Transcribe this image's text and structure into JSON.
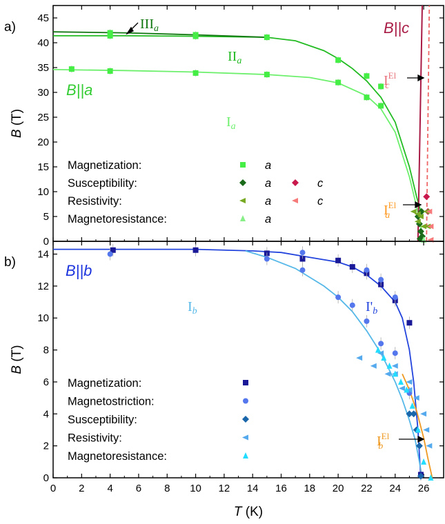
{
  "colors": {
    "a_I": "#6cf06c",
    "a_II": "#22bb22",
    "a_III": "#117711",
    "mag_a": "#44ee44",
    "sus_a": "#1a6a1a",
    "res_a": "#77aa22",
    "mr_a": "#88ee88",
    "c_line": "#a81a44",
    "c_dash": "#ee6666",
    "sus_c": "#c8184c",
    "res_c": "#f77a7a",
    "el_a": "#ff9922",
    "el_c": "#e8707a",
    "b_I": "#55b8e8",
    "b_II": "#2244dd",
    "el_b": "#ee9922",
    "mag_b": "#1a1a99",
    "mstr_b": "#5577ee",
    "sus_b": "#1a66aa",
    "res_b": "#55aaee",
    "mr_b": "#22ddff",
    "b_label": "#1a33dd",
    "a_label": "#33cc33",
    "c_label": "#a81a44"
  },
  "chart_data": [
    {
      "type": "scatter",
      "panel_label": "a)",
      "xlabel": "T (K)",
      "ylabel": "B (T)",
      "xlim": [
        0,
        27.4
      ],
      "ylim": [
        0,
        47.5
      ],
      "xticks": [
        0,
        2,
        4,
        6,
        8,
        10,
        12,
        14,
        16,
        18,
        20,
        22,
        24,
        26
      ],
      "yticks": [
        0,
        5,
        10,
        15,
        20,
        25,
        30,
        35,
        40,
        45
      ],
      "grid": false,
      "field_labels": {
        "a": "B||a",
        "c": "B||c"
      },
      "phase_labels": {
        "I": "I",
        "II": "II",
        "III": "III",
        "sub": "a",
        "Ic_sup": "El",
        "Ic_sub": "c",
        "Ia_sup": "El",
        "Ia_sub": "a"
      },
      "legend_position": "lower-left",
      "legend": [
        {
          "label": "Magnetization:",
          "dirs": [
            "a"
          ]
        },
        {
          "label": "Susceptibility:",
          "dirs": [
            "a",
            "c"
          ]
        },
        {
          "label": "Resistivity:",
          "dirs": [
            "a",
            "c"
          ]
        },
        {
          "label": "Magnetoresistance:",
          "dirs": [
            "a"
          ]
        }
      ],
      "series": [
        {
          "name": "Magnetization a (lower)",
          "marker": "square",
          "x": [
            1.3,
            4.0,
            10.0,
            15.0,
            20.0,
            22.0,
            23.0
          ],
          "y": [
            34.7,
            34.3,
            33.9,
            33.6,
            32.0,
            29.0,
            27.3
          ]
        },
        {
          "name": "Magnetization a (upper)",
          "marker": "square",
          "x": [
            4.0,
            4.0,
            10.0,
            10.0,
            15.0,
            20.0,
            22.0,
            23.0
          ],
          "y": [
            42.0,
            41.4,
            41.6,
            41.3,
            41.1,
            36.5,
            33.3,
            31.2
          ]
        },
        {
          "name": "Susceptibility a",
          "marker": "diamond",
          "x": [
            25.6,
            25.7,
            25.8,
            25.9,
            25.75,
            25.85
          ],
          "y": [
            5.0,
            3.5,
            2.0,
            1.0,
            0.5,
            6.0
          ]
        },
        {
          "name": "Susceptibility c",
          "marker": "diamond",
          "x": [
            26.2,
            26.3
          ],
          "y": [
            9.0,
            6.0
          ]
        },
        {
          "name": "Resistivity a",
          "marker": "tri-left",
          "x": [
            25.3,
            25.6,
            25.6,
            25.8,
            26.0,
            26.2,
            26.3
          ],
          "y": [
            6.0,
            5.5,
            4.0,
            5.0,
            3.0,
            6.0,
            3.0
          ]
        },
        {
          "name": "Resistivity c",
          "marker": "tri-left",
          "x": [
            26.4,
            26.5,
            26.5
          ],
          "y": [
            6.0,
            3.0,
            0.3
          ]
        },
        {
          "name": "Magnetoresistance a",
          "marker": "tri-up",
          "x": [
            26.0
          ],
          "y": [
            0.3
          ]
        }
      ],
      "lines": [
        {
          "name": "I_a",
          "x": [
            0,
            5,
            10,
            15,
            18,
            20,
            22,
            23,
            24,
            25,
            25.5,
            25.8,
            26.0
          ],
          "y": [
            34.6,
            34.4,
            34.1,
            33.6,
            33.0,
            31.9,
            29.3,
            26.7,
            22.0,
            13.0,
            7.0,
            3.0,
            0
          ]
        },
        {
          "name": "II_a",
          "x": [
            0,
            5,
            10,
            15,
            17,
            19,
            20,
            21,
            22,
            23,
            24,
            25,
            25.5,
            25.8
          ],
          "y": [
            41.4,
            41.4,
            41.3,
            41.1,
            40.4,
            38.4,
            36.8,
            34.8,
            32.3,
            29.0,
            24.0,
            15.0,
            9.0,
            6.0
          ]
        },
        {
          "name": "III_a",
          "x": [
            0,
            5,
            10,
            15
          ],
          "y": [
            42.2,
            42.0,
            41.6,
            41.1
          ]
        },
        {
          "name": "I_c",
          "x": [
            25.6,
            25.9
          ],
          "y": [
            0,
            47.5
          ]
        },
        {
          "name": "I_c El",
          "x": [
            26.2,
            26.4
          ],
          "y": [
            0,
            47.5
          ],
          "dash": true
        }
      ]
    },
    {
      "type": "scatter",
      "panel_label": "b)",
      "xlabel": "T (K)",
      "ylabel": "B (T)",
      "xlim": [
        0,
        27.4
      ],
      "ylim": [
        0,
        14.8
      ],
      "xticks": [
        0,
        2,
        4,
        6,
        8,
        10,
        12,
        14,
        16,
        18,
        20,
        22,
        24,
        26
      ],
      "yticks": [
        0,
        2,
        4,
        6,
        8,
        10,
        12,
        14
      ],
      "grid": false,
      "field_labels": {
        "b": "B||b"
      },
      "phase_labels": {
        "I": "I",
        "Iprime": "I'",
        "sub": "b",
        "El_sup": "El",
        "El_sub": "b"
      },
      "legend_position": "lower-left",
      "legend": [
        {
          "label": "Magnetization:"
        },
        {
          "label": "Magnetostriction:"
        },
        {
          "label": "Susceptibility:"
        },
        {
          "label": "Resistivity:"
        },
        {
          "label": "Magnetoresistance:"
        }
      ],
      "series": [
        {
          "name": "Magnetization b",
          "marker": "square",
          "x": [
            4.2,
            10.0,
            15.0,
            17.5,
            20.0,
            21.0,
            22.0,
            23.0,
            24.0,
            25.0,
            25.8
          ],
          "y": [
            14.25,
            14.25,
            14.05,
            13.7,
            13.6,
            13.2,
            12.8,
            12.1,
            11.1,
            9.7,
            0.2
          ]
        },
        {
          "name": "Magnetostriction b",
          "marker": "circle",
          "x": [
            4.0,
            15.0,
            17.5,
            17.5,
            20.0,
            21.0,
            22.0,
            22.0,
            23.0,
            23.0,
            24.0,
            24.0,
            25.0
          ],
          "y": [
            14.0,
            13.7,
            14.1,
            13.0,
            11.3,
            10.8,
            9.8,
            13.0,
            8.4,
            12.4,
            7.8,
            11.3,
            5.3
          ]
        },
        {
          "name": "Susceptibility b",
          "marker": "diamond",
          "x": [
            25.0,
            25.3,
            25.5,
            25.7,
            25.8
          ],
          "y": [
            4.0,
            4.0,
            3.0,
            2.0,
            0.1
          ]
        },
        {
          "name": "Resistivity b",
          "marker": "tri-left",
          "x": [
            21.5,
            22.5,
            23.0,
            23.5,
            24.0,
            24.5,
            25.0,
            25.5,
            26.0,
            26.2,
            26.4,
            25.0,
            24.0
          ],
          "y": [
            7.5,
            7.0,
            7.8,
            6.5,
            6.5,
            5.6,
            5.5,
            5.0,
            4.0,
            3.0,
            2.0,
            6.0,
            7.0
          ]
        },
        {
          "name": "Magnetoresistance b",
          "marker": "tri-up",
          "x": [
            22.8,
            23.2,
            23.6,
            24.0,
            24.4,
            24.8,
            25.2,
            25.6,
            26.0,
            26.5
          ],
          "y": [
            8.0,
            7.5,
            7.0,
            6.5,
            6.0,
            5.5,
            4.5,
            3.0,
            1.0,
            0.0
          ]
        }
      ],
      "lines": [
        {
          "name": "I'_b",
          "x": [
            0,
            5,
            10,
            14,
            16,
            18,
            20,
            21,
            22,
            23,
            24,
            24.5,
            25,
            25.3,
            25.6,
            25.8
          ],
          "y": [
            14.3,
            14.3,
            14.3,
            14.2,
            14.1,
            13.8,
            13.5,
            13.2,
            12.7,
            12.0,
            11.0,
            10.0,
            8.0,
            6.0,
            3.0,
            0
          ]
        },
        {
          "name": "I_b",
          "x": [
            13.5,
            15,
            17,
            19,
            20,
            21,
            22,
            23,
            24,
            24.5,
            25,
            25.4,
            25.7,
            25.9
          ],
          "y": [
            14.2,
            13.8,
            13.1,
            12.0,
            11.3,
            10.4,
            9.2,
            7.8,
            6.0,
            4.9,
            3.6,
            2.4,
            1.0,
            0
          ]
        },
        {
          "name": "I_b El",
          "x": [
            24.5,
            25.0,
            25.5,
            26.0,
            26.3,
            26.6
          ],
          "y": [
            6.5,
            5.5,
            4.2,
            2.5,
            1.2,
            0
          ]
        }
      ]
    }
  ]
}
